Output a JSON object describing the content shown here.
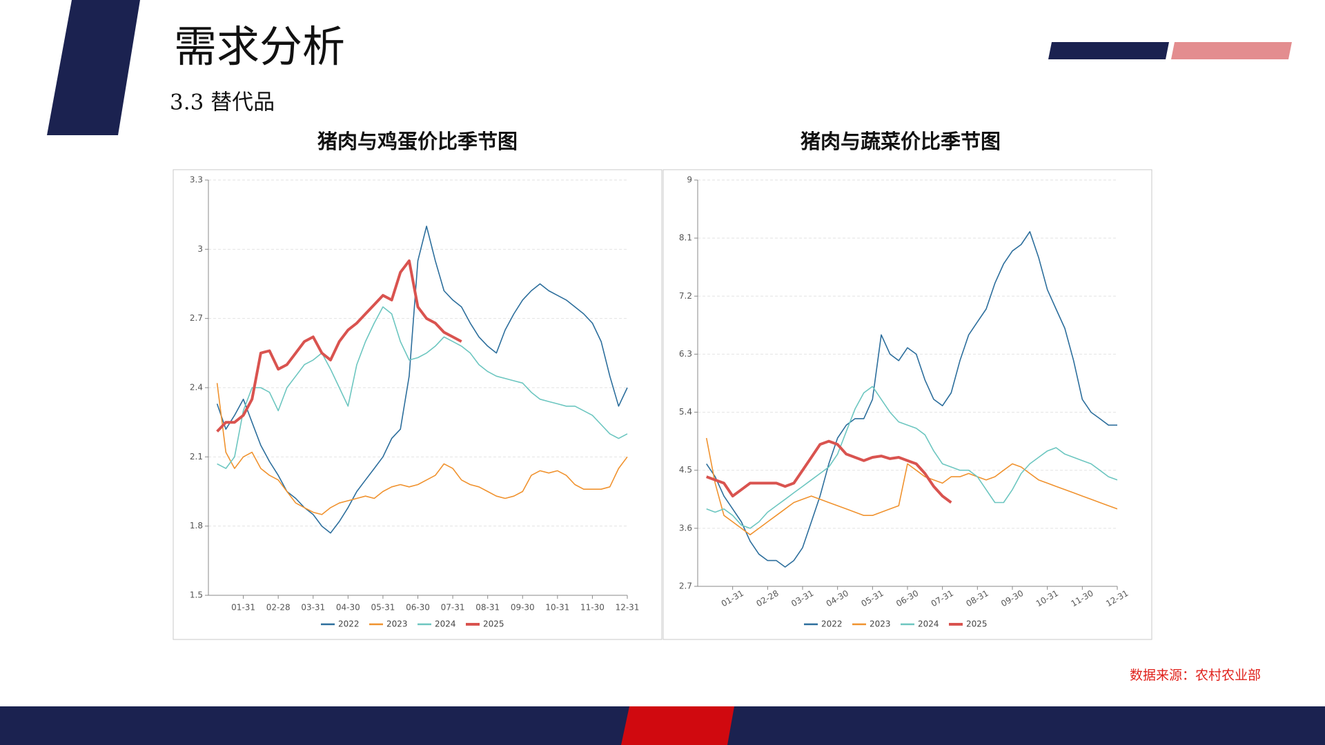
{
  "slide": {
    "title": "需求分析",
    "subtitle": "3.3 替代品",
    "source": "数据来源：农村农业部"
  },
  "chart_data": [
    {
      "type": "line",
      "title": "猪肉与鸡蛋价比季节图",
      "categories": [
        null,
        null,
        null,
        "01-31",
        null,
        null,
        null,
        "02-28",
        null,
        null,
        null,
        "03-31",
        null,
        null,
        null,
        "04-30",
        null,
        null,
        null,
        "05-31",
        null,
        null,
        null,
        "06-30",
        null,
        null,
        null,
        "07-31",
        null,
        null,
        null,
        "08-31",
        null,
        null,
        null,
        "09-30",
        null,
        null,
        null,
        "10-31",
        null,
        null,
        null,
        "11-30",
        null,
        null,
        null,
        "12-31"
      ],
      "ylim": [
        1.5,
        3.3
      ],
      "yticks": [
        1.5,
        1.8,
        2.1,
        2.4,
        2.7,
        3,
        3.3
      ],
      "grid": true,
      "legend": "bottom",
      "series": [
        {
          "name": "2022",
          "color": "#2c6e9c",
          "line_width": 1.6,
          "values": [
            2.33,
            2.22,
            2.28,
            2.35,
            2.25,
            2.15,
            2.08,
            2.02,
            1.95,
            1.92,
            1.88,
            1.85,
            1.8,
            1.77,
            1.82,
            1.88,
            1.95,
            2.0,
            2.05,
            2.1,
            2.18,
            2.22,
            2.45,
            2.95,
            3.1,
            2.95,
            2.82,
            2.78,
            2.75,
            2.68,
            2.62,
            2.58,
            2.55,
            2.65,
            2.72,
            2.78,
            2.82,
            2.85,
            2.82,
            2.8,
            2.78,
            2.75,
            2.72,
            2.68,
            2.6,
            2.45,
            2.32,
            2.4
          ]
        },
        {
          "name": "2023",
          "color": "#f0922e",
          "line_width": 1.6,
          "values": [
            2.42,
            2.12,
            2.05,
            2.1,
            2.12,
            2.05,
            2.02,
            2.0,
            1.95,
            1.9,
            1.88,
            1.86,
            1.85,
            1.88,
            1.9,
            1.91,
            1.92,
            1.93,
            1.92,
            1.95,
            1.97,
            1.98,
            1.97,
            1.98,
            2.0,
            2.02,
            2.07,
            2.05,
            2.0,
            1.98,
            1.97,
            1.95,
            1.93,
            1.92,
            1.93,
            1.95,
            2.02,
            2.04,
            2.03,
            2.04,
            2.02,
            1.98,
            1.96,
            1.96,
            1.96,
            1.97,
            2.05,
            2.1
          ]
        },
        {
          "name": "2024",
          "color": "#6cc6c0",
          "line_width": 1.6,
          "values": [
            2.07,
            2.05,
            2.1,
            2.3,
            2.4,
            2.4,
            2.38,
            2.3,
            2.4,
            2.45,
            2.5,
            2.52,
            2.55,
            2.48,
            2.4,
            2.32,
            2.5,
            2.6,
            2.68,
            2.75,
            2.72,
            2.6,
            2.52,
            2.53,
            2.55,
            2.58,
            2.62,
            2.6,
            2.58,
            2.55,
            2.5,
            2.47,
            2.45,
            2.44,
            2.43,
            2.42,
            2.38,
            2.35,
            2.34,
            2.33,
            2.32,
            2.32,
            2.3,
            2.28,
            2.24,
            2.2,
            2.18,
            2.2
          ]
        },
        {
          "name": "2025",
          "color": "#d9534f",
          "line_width": 4,
          "values": [
            2.21,
            2.25,
            2.25,
            2.28,
            2.35,
            2.55,
            2.56,
            2.48,
            2.5,
            2.55,
            2.6,
            2.62,
            2.55,
            2.52,
            2.6,
            2.65,
            2.68,
            2.72,
            2.76,
            2.8,
            2.78,
            2.9,
            2.95,
            2.75,
            2.7,
            2.68,
            2.64,
            2.62,
            2.6,
            null,
            null,
            null,
            null,
            null,
            null,
            null,
            null,
            null,
            null,
            null,
            null,
            null,
            null,
            null,
            null,
            null,
            null,
            null
          ]
        }
      ]
    },
    {
      "type": "line",
      "title": "猪肉与蔬菜价比季节图",
      "categories": [
        null,
        null,
        null,
        "01-31",
        null,
        null,
        null,
        "02-28",
        null,
        null,
        null,
        "03-31",
        null,
        null,
        null,
        "04-30",
        null,
        null,
        null,
        "05-31",
        null,
        null,
        null,
        "06-30",
        null,
        null,
        null,
        "07-31",
        null,
        null,
        null,
        "08-31",
        null,
        null,
        null,
        "09-30",
        null,
        null,
        null,
        "10-31",
        null,
        null,
        null,
        "11-30",
        null,
        null,
        null,
        "12-31"
      ],
      "ylim": [
        2.7,
        9
      ],
      "yticks": [
        2.7,
        3.6,
        4.5,
        5.4,
        6.3,
        7.2,
        8.1,
        9
      ],
      "grid": true,
      "legend": "bottom",
      "rotate_xlabels": true,
      "series": [
        {
          "name": "2022",
          "color": "#2c6e9c",
          "line_width": 1.6,
          "values": [
            4.6,
            4.4,
            4.1,
            3.9,
            3.7,
            3.4,
            3.2,
            3.1,
            3.1,
            3.0,
            3.1,
            3.3,
            3.7,
            4.1,
            4.6,
            5.0,
            5.2,
            5.3,
            5.3,
            5.6,
            6.6,
            6.3,
            6.2,
            6.4,
            6.3,
            5.9,
            5.6,
            5.5,
            5.7,
            6.2,
            6.6,
            6.8,
            7.0,
            7.4,
            7.7,
            7.9,
            8.0,
            8.2,
            7.8,
            7.3,
            7.0,
            6.7,
            6.2,
            5.6,
            5.4,
            5.3,
            5.2,
            5.2
          ]
        },
        {
          "name": "2023",
          "color": "#f0922e",
          "line_width": 1.6,
          "values": [
            5.0,
            4.3,
            3.8,
            3.7,
            3.6,
            3.5,
            3.6,
            3.7,
            3.8,
            3.9,
            4.0,
            4.05,
            4.1,
            4.05,
            4.0,
            3.95,
            3.9,
            3.85,
            3.8,
            3.8,
            3.85,
            3.9,
            3.95,
            4.6,
            4.5,
            4.4,
            4.35,
            4.3,
            4.4,
            4.4,
            4.45,
            4.4,
            4.35,
            4.4,
            4.5,
            4.6,
            4.55,
            4.45,
            4.35,
            4.3,
            4.25,
            4.2,
            4.15,
            4.1,
            4.05,
            4.0,
            3.95,
            3.9
          ]
        },
        {
          "name": "2024",
          "color": "#6cc6c0",
          "line_width": 1.6,
          "values": [
            3.9,
            3.85,
            3.9,
            3.8,
            3.65,
            3.6,
            3.7,
            3.85,
            3.95,
            4.05,
            4.15,
            4.25,
            4.35,
            4.45,
            4.55,
            4.75,
            5.1,
            5.45,
            5.7,
            5.8,
            5.6,
            5.4,
            5.25,
            5.2,
            5.15,
            5.05,
            4.8,
            4.6,
            4.55,
            4.5,
            4.5,
            4.4,
            4.2,
            4.0,
            4.0,
            4.2,
            4.45,
            4.6,
            4.7,
            4.8,
            4.85,
            4.75,
            4.7,
            4.65,
            4.6,
            4.5,
            4.4,
            4.35
          ]
        },
        {
          "name": "2025",
          "color": "#d9534f",
          "line_width": 4,
          "values": [
            4.4,
            4.35,
            4.3,
            4.1,
            4.2,
            4.3,
            4.3,
            4.3,
            4.3,
            4.25,
            4.3,
            4.5,
            4.7,
            4.9,
            4.95,
            4.9,
            4.75,
            4.7,
            4.65,
            4.7,
            4.72,
            4.68,
            4.7,
            4.65,
            4.6,
            4.45,
            4.25,
            4.1,
            4.0,
            null,
            null,
            null,
            null,
            null,
            null,
            null,
            null,
            null,
            null,
            null,
            null,
            null,
            null,
            null,
            null,
            null,
            null,
            null
          ]
        }
      ]
    }
  ]
}
